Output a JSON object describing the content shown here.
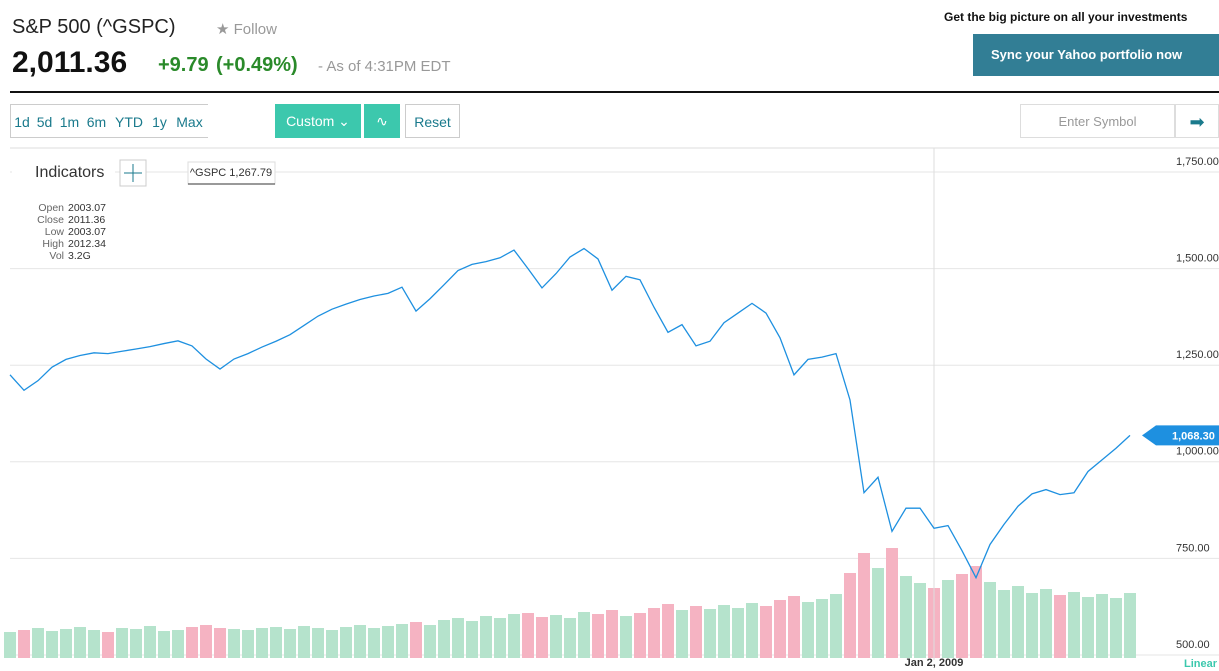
{
  "header": {
    "title": "S&P 500 (^GSPC)",
    "follow": "Follow",
    "price": "2,011.36",
    "change": "+9.79",
    "change_pct": "(+0.49%)",
    "as_of": "- As of 4:31PM EDT",
    "promo": "Get the big picture on all your investments",
    "sync_button": "Sync your Yahoo portfolio now"
  },
  "toolbar": {
    "ranges": [
      "1d",
      "5d",
      "1m",
      "6m",
      "YTD",
      "1y",
      "Max"
    ],
    "custom": "Custom",
    "reset": "Reset",
    "symbol_placeholder": "Enter Symbol"
  },
  "indicators": {
    "label": "Indicators",
    "crosshair": "^GSPC 1,267.79",
    "rows": [
      [
        "Open",
        "2003.07"
      ],
      [
        "Close",
        "2011.36"
      ],
      [
        "Low",
        "2003.07"
      ],
      [
        "High",
        "2012.34"
      ],
      [
        "Vol",
        "3.2G"
      ]
    ]
  },
  "chart_data": {
    "type": "line",
    "scale": "Linear",
    "categories": [
      null,
      null,
      null,
      null,
      null,
      null,
      null,
      null,
      null,
      null,
      null,
      null,
      null,
      null,
      null,
      null,
      null,
      null,
      null,
      null,
      null,
      null,
      null,
      null,
      null,
      null,
      null,
      null,
      null,
      null,
      null,
      null,
      null,
      null,
      null,
      null,
      null,
      null,
      null,
      null,
      null,
      null,
      null,
      null,
      null,
      null,
      null,
      null,
      null,
      null,
      null,
      null,
      null,
      null,
      null,
      null,
      null,
      null,
      null,
      null,
      null,
      null,
      null,
      null,
      null,
      null,
      "Jan 2, 2009",
      null,
      null,
      null,
      null,
      null,
      null,
      null,
      null,
      null,
      null,
      null,
      null,
      null,
      null
    ],
    "series": [
      {
        "color": "#1e90e0",
        "values": [
          1225,
          1185,
          1210,
          1245,
          1265,
          1275,
          1282,
          1280,
          1286,
          1292,
          1298,
          1306,
          1313,
          1300,
          1266,
          1240,
          1266,
          1280,
          1297,
          1312,
          1329,
          1353,
          1377,
          1395,
          1408,
          1420,
          1429,
          1436,
          1452,
          1390,
          1422,
          1458,
          1495,
          1511,
          1518,
          1528,
          1548,
          1500,
          1450,
          1487,
          1530,
          1552,
          1525,
          1444,
          1480,
          1471,
          1400,
          1335,
          1355,
          1300,
          1312,
          1360,
          1385,
          1410,
          1385,
          1321,
          1225,
          1265,
          1271,
          1280,
          1160,
          920,
          960,
          820,
          880,
          880,
          828,
          835,
          770,
          700,
          786,
          838,
          885,
          917,
          928,
          915,
          920,
          975,
          1005,
          1035,
          1068.3
        ]
      }
    ],
    "current_price": {
      "value": 1068.3,
      "label": "1,068.30"
    },
    "volume": [
      2.6,
      2.8,
      3.0,
      2.7,
      2.9,
      3.1,
      2.8,
      2.6,
      3.0,
      2.9,
      3.2,
      2.7,
      2.8,
      3.1,
      3.3,
      3.0,
      2.9,
      2.8,
      3.0,
      3.1,
      2.9,
      3.2,
      3.0,
      2.8,
      3.1,
      3.3,
      3.0,
      3.2,
      3.4,
      3.6,
      3.3,
      3.8,
      4.0,
      3.7,
      4.2,
      4.0,
      4.4,
      4.5,
      4.1,
      4.3,
      4.0,
      4.6,
      4.4,
      4.8,
      4.2,
      4.5,
      5.0,
      5.4,
      4.8,
      5.2,
      4.9,
      5.3,
      5.0,
      5.5,
      5.2,
      5.8,
      6.2,
      5.6,
      5.9,
      6.4,
      8.5,
      10.5,
      9.0,
      11.0,
      8.2,
      7.5,
      7.0,
      7.8,
      8.4,
      9.2,
      7.6,
      6.8,
      7.2,
      6.5,
      6.9,
      6.3,
      6.6,
      6.1,
      6.4,
      6.0,
      6.5
    ],
    "volume_lim": [
      0,
      20
    ],
    "volume_colors": {
      "up": "#b5e3cc",
      "down": "#f5b3c2"
    },
    "ylim": [
      500,
      1750
    ],
    "yticks": [
      {
        "value": 500,
        "label": "500.00"
      },
      {
        "value": 750,
        "label": "750.00"
      },
      {
        "value": 1000,
        "label": "1,000.00"
      },
      {
        "value": 1250,
        "label": "1,250.00"
      },
      {
        "value": 1500,
        "label": "1,500.00"
      },
      {
        "value": 1750,
        "label": "1,750.00"
      }
    ],
    "grid": true
  }
}
